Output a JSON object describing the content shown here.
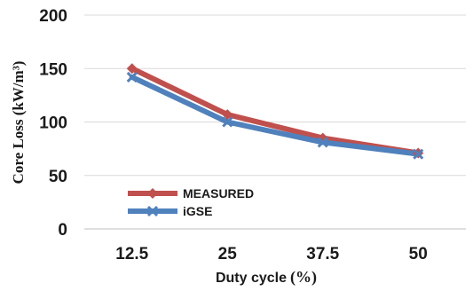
{
  "chart_data": {
    "type": "line",
    "x": [
      "12.5",
      "25",
      "37.5",
      "50"
    ],
    "series": [
      {
        "name": "MEASURED",
        "values": [
          150,
          107,
          85,
          71
        ],
        "color": "#c0504d",
        "marker": "diamond"
      },
      {
        "name": "iGSE",
        "values": [
          142,
          100,
          81,
          70
        ],
        "color": "#4f81bd",
        "marker": "x"
      }
    ],
    "y_ticks": [
      "0",
      "50",
      "100",
      "150",
      "200"
    ],
    "ylim": [
      0,
      200
    ],
    "xlabel": "Duty cycle",
    "xlabel_unit": "(%)",
    "ylabel": "Core Loss (kW/m³)",
    "grid": "horizontal",
    "legend_position": "bottom-left"
  }
}
